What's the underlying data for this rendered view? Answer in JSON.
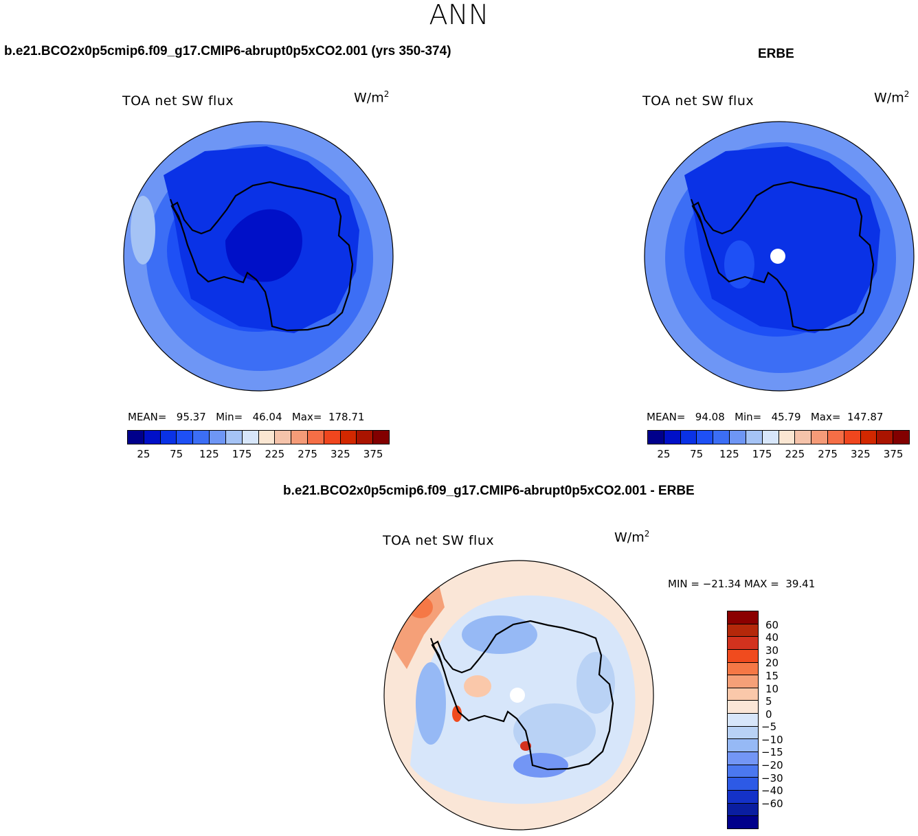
{
  "page": {
    "title": "ANN"
  },
  "panels": [
    {
      "case_title": "b.e21.BCO2x0p5cmip6.f09_g17.CMIP6-abrupt0p5xCO2.001 (yrs 350-374)",
      "field": "TOA net SW flux",
      "units": "W/m",
      "units_sup": "2",
      "stats": {
        "mean_label": "MEAN=",
        "mean": "95.37",
        "min_label": "Min=",
        "min": "46.04",
        "max_label": "Max=",
        "max": "178.71"
      }
    },
    {
      "case_title": "ERBE",
      "field": "TOA net SW flux",
      "units": "W/m",
      "units_sup": "2",
      "stats": {
        "mean_label": "MEAN=",
        "mean": "94.08",
        "min_label": "Min=",
        "min": "45.79",
        "max_label": "Max=",
        "max": "147.87"
      }
    }
  ],
  "abs_colorbar": {
    "colors": [
      "#00008b",
      "#0010c8",
      "#0a32e6",
      "#1e50f5",
      "#3c6ef5",
      "#6e96f5",
      "#a5c3f5",
      "#d7e6fa",
      "#fae6d2",
      "#f5c3aa",
      "#f59b78",
      "#f56e46",
      "#f0461e",
      "#d22800",
      "#aa1400",
      "#820000"
    ],
    "ticks": [
      "25",
      "75",
      "125",
      "175",
      "225",
      "275",
      "325",
      "375"
    ]
  },
  "diff_panel": {
    "case_title": "b.e21.BCO2x0p5cmip6.f09_g17.CMIP6-abrupt0p5xCO2.001 - ERBE",
    "field": "TOA net SW flux",
    "units": "W/m",
    "units_sup": "2",
    "minmax": "MIN = −21.34 MAX =  39.41"
  },
  "diff_colorbar": {
    "colors": [
      "#8b0000",
      "#b4280a",
      "#d2321e",
      "#f04b1e",
      "#f57846",
      "#f5a078",
      "#fac8aa",
      "#fae6d7",
      "#d7e6fa",
      "#b9d2f5",
      "#96b9f5",
      "#7396f5",
      "#4b78f0",
      "#2d5ae6",
      "#1432c8",
      "#0a1ea0",
      "#00008b"
    ],
    "ticks": [
      "60",
      "40",
      "30",
      "20",
      "15",
      "10",
      "5",
      "0",
      "−5",
      "−10",
      "−15",
      "−20",
      "−30",
      "−40",
      "−60"
    ]
  },
  "colors": {
    "ocean_outer": "#6e96f5",
    "ocean_mid": "#3c6ef5",
    "ocean_inner": "#1e50f5",
    "ice": "#0a32e6",
    "plateau": "#0010c8",
    "diff_warm": "#fae6d7",
    "diff_cool": "#d7e6fa",
    "diff_bluer": "#96b9f5",
    "diff_red": "#f57846"
  },
  "icons": {
    "pole_mask": "pole-gap-mask"
  }
}
